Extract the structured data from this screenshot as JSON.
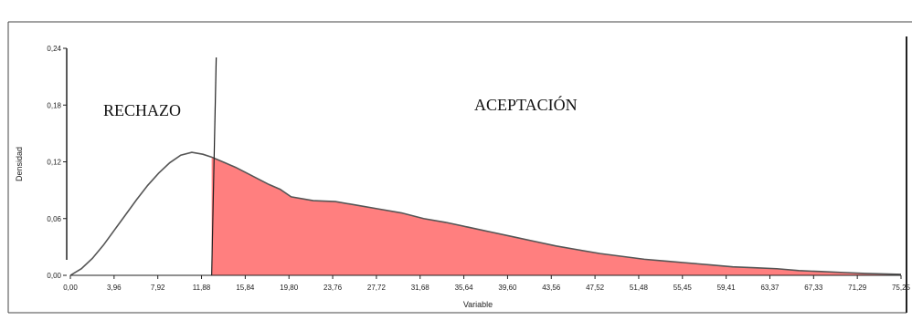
{
  "chart_data": {
    "type": "area",
    "title": "",
    "xlabel": "Variable",
    "ylabel": "Densidad",
    "xlim": [
      0,
      75.25
    ],
    "ylim": [
      0,
      0.24
    ],
    "x_ticks": [
      "0,00",
      "3,96",
      "7,92",
      "11,88",
      "15,84",
      "19,80",
      "23,76",
      "27,72",
      "31,68",
      "35,64",
      "39,60",
      "43,56",
      "47,52",
      "51,48",
      "55,45",
      "59,41",
      "63,37",
      "67,33",
      "71,29",
      "75,25"
    ],
    "y_ticks": [
      "0,00",
      "0,06",
      "0,12",
      "0,18",
      "0,24"
    ],
    "critical_value": 12.8,
    "regions": {
      "reject_label": "RECHAZO",
      "accept_label": "ACEPTACIÓN"
    },
    "fill_color": "#ff7f7f",
    "series": [
      {
        "x": [
          0,
          1,
          2,
          3,
          4,
          5,
          6,
          7,
          8,
          9,
          10,
          11,
          12,
          12.8,
          14,
          15,
          16,
          17,
          18,
          19,
          20,
          22,
          24,
          26,
          28,
          30,
          32,
          34,
          36,
          38,
          40,
          42,
          44,
          46,
          48,
          50,
          52,
          54,
          56,
          58,
          60,
          62,
          64,
          66,
          68,
          70,
          72,
          75.25
        ],
        "y": [
          0.0,
          0.007,
          0.018,
          0.032,
          0.048,
          0.064,
          0.08,
          0.095,
          0.108,
          0.119,
          0.127,
          0.13,
          0.128,
          0.125,
          0.119,
          0.114,
          0.108,
          0.102,
          0.096,
          0.091,
          0.083,
          0.079,
          0.078,
          0.074,
          0.07,
          0.066,
          0.06,
          0.056,
          0.051,
          0.046,
          0.041,
          0.036,
          0.031,
          0.027,
          0.023,
          0.02,
          0.017,
          0.015,
          0.013,
          0.011,
          0.009,
          0.008,
          0.007,
          0.005,
          0.004,
          0.003,
          0.002,
          0.001
        ]
      }
    ]
  }
}
